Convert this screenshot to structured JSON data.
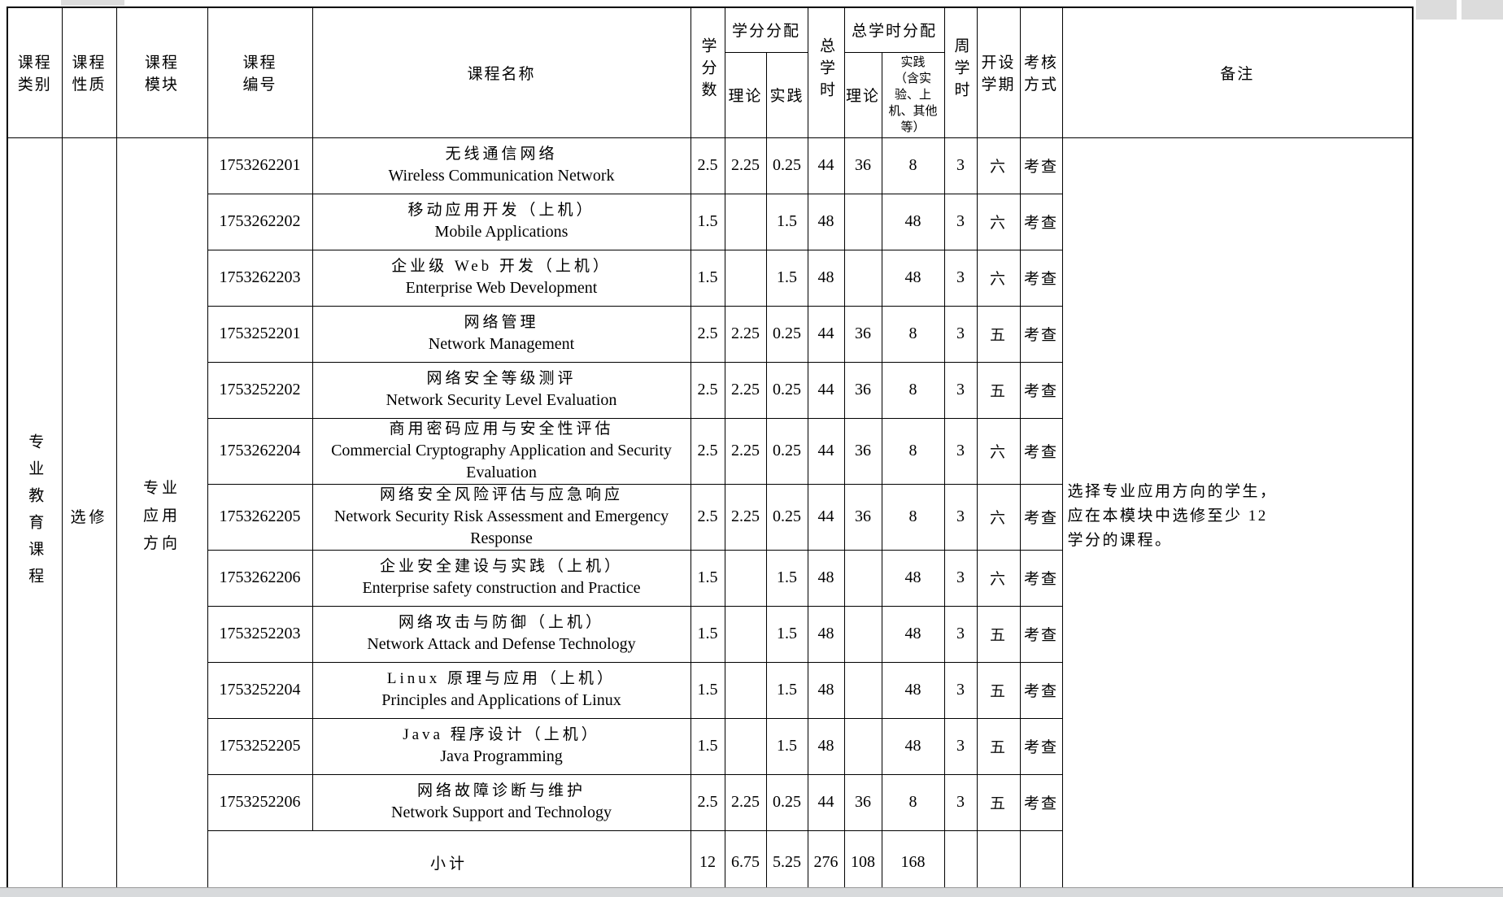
{
  "header": {
    "course_category": "课程\n类别",
    "course_nature": "课程\n性质",
    "course_module": "课程\n模块",
    "course_no": "课程\n编号",
    "course_name": "课程名称",
    "credits": "学分数",
    "credit_alloc": "学分分配",
    "credit_theory": "理论",
    "credit_practice": "实践",
    "total_hours": "总学时",
    "hours_alloc": "总学时分配",
    "hours_theory": "理论",
    "hours_practice": "实践\n（含实\n验、上\n机、其他\n等）",
    "weekly_hours": "周学时",
    "semester": "开设\n学期",
    "assessment": "考核\n方式",
    "remarks": "备注"
  },
  "body": {
    "category": "专业教育课程",
    "nature": "选修",
    "module": "专业\n应用\n方向",
    "remarks": "选择专业应用方向的学生，\n应在本模块中选修至少 12\n学分的课程。"
  },
  "courses": [
    {
      "no": "1753262201",
      "name_zh": "无线通信网络",
      "name_en": "Wireless Communication Network",
      "credits": "2.5",
      "credit_theory": "2.25",
      "credit_practice": "0.25",
      "total_hours": "44",
      "hours_theory": "36",
      "hours_practice": "8",
      "weekly": "3",
      "semester": "六",
      "assessment": "考查"
    },
    {
      "no": "1753262202",
      "name_zh": "移动应用开发（上机）",
      "name_en": "Mobile Applications",
      "credits": "1.5",
      "credit_theory": "",
      "credit_practice": "1.5",
      "total_hours": "48",
      "hours_theory": "",
      "hours_practice": "48",
      "weekly": "3",
      "semester": "六",
      "assessment": "考查"
    },
    {
      "no": "1753262203",
      "name_zh": "企业级 Web 开发（上机）",
      "name_en": "Enterprise Web Development",
      "credits": "1.5",
      "credit_theory": "",
      "credit_practice": "1.5",
      "total_hours": "48",
      "hours_theory": "",
      "hours_practice": "48",
      "weekly": "3",
      "semester": "六",
      "assessment": "考查"
    },
    {
      "no": "1753252201",
      "name_zh": "网络管理",
      "name_en": "Network Management",
      "credits": "2.5",
      "credit_theory": "2.25",
      "credit_practice": "0.25",
      "total_hours": "44",
      "hours_theory": "36",
      "hours_practice": "8",
      "weekly": "3",
      "semester": "五",
      "assessment": "考查"
    },
    {
      "no": "1753252202",
      "name_zh": "网络安全等级测评",
      "name_en": "Network Security Level Evaluation",
      "credits": "2.5",
      "credit_theory": "2.25",
      "credit_practice": "0.25",
      "total_hours": "44",
      "hours_theory": "36",
      "hours_practice": "8",
      "weekly": "3",
      "semester": "五",
      "assessment": "考查"
    },
    {
      "no": "1753262204",
      "name_zh": "商用密码应用与安全性评估",
      "name_en": "Commercial Cryptography Application and Security Evaluation",
      "credits": "2.5",
      "credit_theory": "2.25",
      "credit_practice": "0.25",
      "total_hours": "44",
      "hours_theory": "36",
      "hours_practice": "8",
      "weekly": "3",
      "semester": "六",
      "assessment": "考查"
    },
    {
      "no": "1753262205",
      "name_zh": "网络安全风险评估与应急响应",
      "name_en": "Network Security Risk Assessment and Emergency Response",
      "credits": "2.5",
      "credit_theory": "2.25",
      "credit_practice": "0.25",
      "total_hours": "44",
      "hours_theory": "36",
      "hours_practice": "8",
      "weekly": "3",
      "semester": "六",
      "assessment": "考查"
    },
    {
      "no": "1753262206",
      "name_zh": "企业安全建设与实践（上机）",
      "name_en": "Enterprise safety construction and Practice",
      "credits": "1.5",
      "credit_theory": "",
      "credit_practice": "1.5",
      "total_hours": "48",
      "hours_theory": "",
      "hours_practice": "48",
      "weekly": "3",
      "semester": "六",
      "assessment": "考查"
    },
    {
      "no": "1753252203",
      "name_zh": "网络攻击与防御（上机）",
      "name_en": "Network Attack and Defense Technology",
      "credits": "1.5",
      "credit_theory": "",
      "credit_practice": "1.5",
      "total_hours": "48",
      "hours_theory": "",
      "hours_practice": "48",
      "weekly": "3",
      "semester": "五",
      "assessment": "考查"
    },
    {
      "no": "1753252204",
      "name_zh": "Linux 原理与应用（上机）",
      "name_en": "Principles and Applications of Linux",
      "credits": "1.5",
      "credit_theory": "",
      "credit_practice": "1.5",
      "total_hours": "48",
      "hours_theory": "",
      "hours_practice": "48",
      "weekly": "3",
      "semester": "五",
      "assessment": "考查"
    },
    {
      "no": "1753252205",
      "name_zh": "Java 程序设计（上机）",
      "name_en": "Java Programming",
      "credits": "1.5",
      "credit_theory": "",
      "credit_practice": "1.5",
      "total_hours": "48",
      "hours_theory": "",
      "hours_practice": "48",
      "weekly": "3",
      "semester": "五",
      "assessment": "考查"
    },
    {
      "no": "1753252206",
      "name_zh": "网络故障诊断与维护",
      "name_en": "Network Support and Technology",
      "credits": "2.5",
      "credit_theory": "2.25",
      "credit_practice": "0.25",
      "total_hours": "44",
      "hours_theory": "36",
      "hours_practice": "8",
      "weekly": "3",
      "semester": "五",
      "assessment": "考查"
    }
  ],
  "subtotal": {
    "label": "小计",
    "credits": "12",
    "credit_theory": "6.75",
    "credit_practice": "5.25",
    "total_hours": "276",
    "hours_theory": "108",
    "hours_practice": "168",
    "weekly": "",
    "semester": "",
    "assessment": ""
  }
}
